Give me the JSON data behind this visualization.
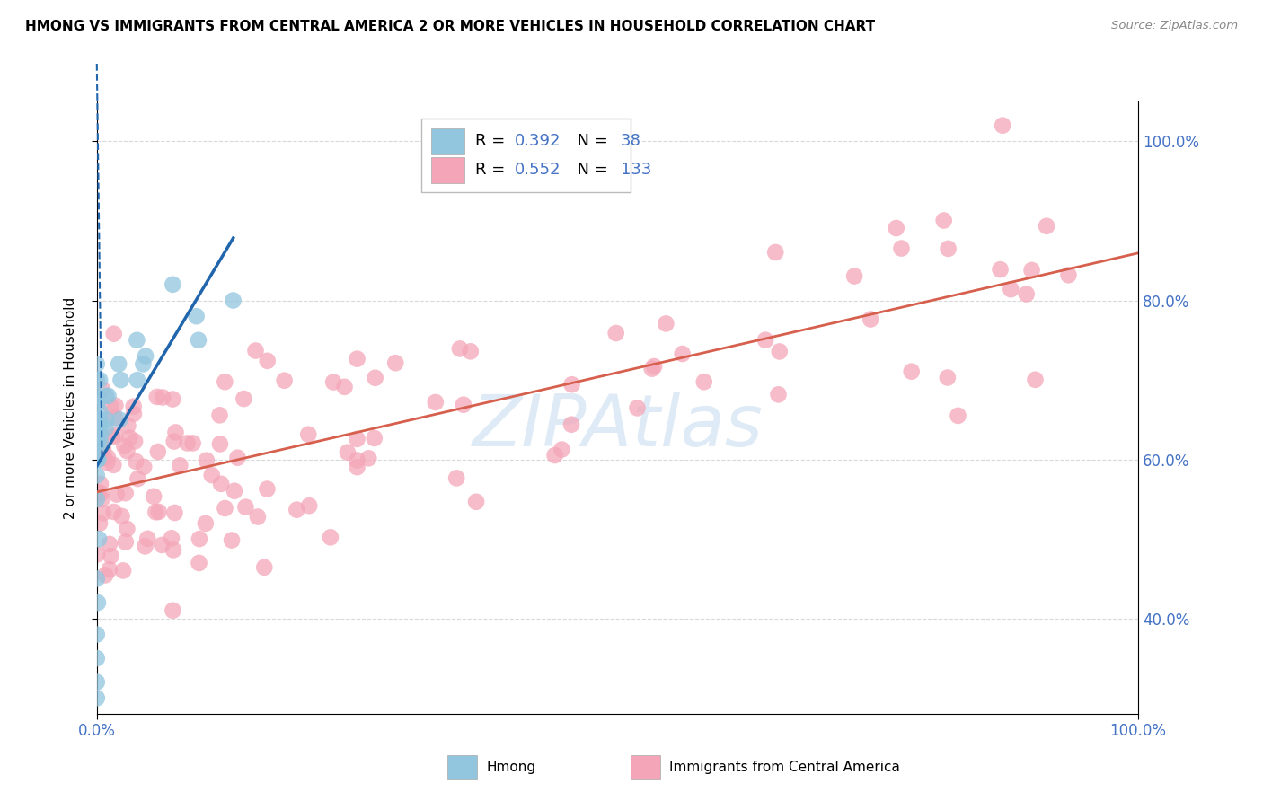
{
  "title": "HMONG VS IMMIGRANTS FROM CENTRAL AMERICA 2 OR MORE VEHICLES IN HOUSEHOLD CORRELATION CHART",
  "source": "Source: ZipAtlas.com",
  "ylabel": "2 or more Vehicles in Household",
  "watermark": "ZIPAtlas",
  "hmong_R": 0.392,
  "hmong_N": 38,
  "central_R": 0.552,
  "central_N": 133,
  "hmong_color": "#92c5de",
  "central_color": "#f4a6b8",
  "hmong_line_color": "#2166ac",
  "central_line_color": "#d6604d",
  "background_color": "#ffffff",
  "grid_color": "#d9d9d9",
  "tick_color": "#4472c4",
  "xlim": [
    0.0,
    1.0
  ],
  "ylim": [
    0.28,
    1.05
  ],
  "yticks": [
    0.4,
    0.6,
    0.8,
    1.0
  ],
  "xtick_labels": [
    "0.0%",
    "100.0%"
  ],
  "xtick_positions": [
    0.0,
    1.0
  ],
  "ytick_labels": [
    "40.0%",
    "60.0%",
    "80.0%",
    "100.0%"
  ]
}
